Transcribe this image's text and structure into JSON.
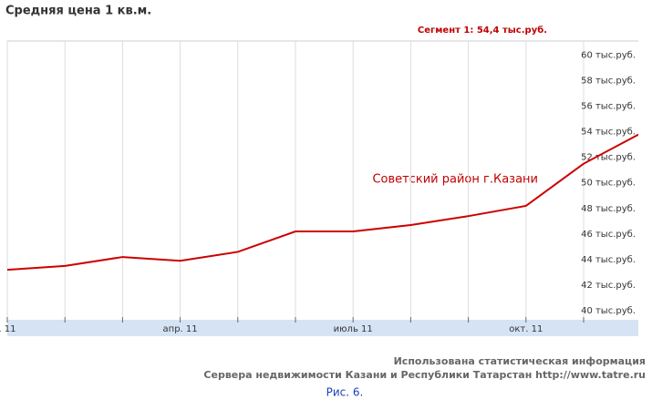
{
  "chart_data": {
    "type": "line",
    "title": "Средняя цена 1 кв.м.",
    "legend_label": "Сегмент 1:  54,4 тыс.руб.",
    "annotation": "Советский район г.Казани",
    "categories": [
      ". 11",
      null,
      null,
      "апр. 11",
      null,
      null,
      "июль 11",
      null,
      null,
      "окт. 11",
      null,
      null
    ],
    "series": [
      {
        "name": "Советский район г.Казани",
        "color": "#cc0000",
        "values": [
          43.2,
          43.5,
          44.2,
          43.9,
          44.6,
          46.2,
          46.2,
          46.7,
          47.4,
          48.2,
          51.5,
          53.9
        ]
      }
    ],
    "ylim": [
      39.5,
      61.1
    ],
    "yticks": [
      {
        "value": 40,
        "label": "40 тыс.руб."
      },
      {
        "value": 42,
        "label": "42 тыс.руб."
      },
      {
        "value": 44,
        "label": "44 тыс.руб."
      },
      {
        "value": 46,
        "label": "46 тыс.руб."
      },
      {
        "value": 48,
        "label": "48 тыс.руб."
      },
      {
        "value": 50,
        "label": "50 тыс.руб."
      },
      {
        "value": 52,
        "label": "52 тыс.руб."
      },
      {
        "value": 54,
        "label": "54 тыс.руб."
      },
      {
        "value": 56,
        "label": "56 тыс.руб."
      },
      {
        "value": 58,
        "label": "58 тыс.руб."
      },
      {
        "value": 60,
        "label": "60 тыс.руб."
      }
    ],
    "xgrid": true,
    "ygrid": false,
    "notes": [
      "Использована статистическая информация",
      "Сервера недвижимости Казани и Республики Татарстан http://www.tatre.ru"
    ],
    "caption": "Рис. 6."
  }
}
